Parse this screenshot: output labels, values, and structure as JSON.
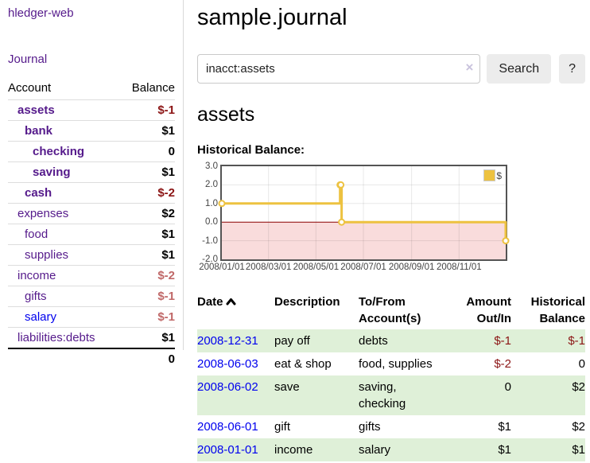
{
  "brand": "hledger-web",
  "nav": {
    "journal": "Journal"
  },
  "sidebar": {
    "header": {
      "account": "Account",
      "balance": "Balance"
    },
    "accounts": [
      {
        "name": "assets",
        "balance": "$-1"
      },
      {
        "name": "bank",
        "balance": "$1"
      },
      {
        "name": "checking",
        "balance": "0"
      },
      {
        "name": "saving",
        "balance": "$1"
      },
      {
        "name": "cash",
        "balance": "$-2"
      },
      {
        "name": "expenses",
        "balance": "$2"
      },
      {
        "name": "food",
        "balance": "$1"
      },
      {
        "name": "supplies",
        "balance": "$1"
      },
      {
        "name": "income",
        "balance": "$-2"
      },
      {
        "name": "gifts",
        "balance": "$-1"
      },
      {
        "name": "salary",
        "balance": "$-1"
      },
      {
        "name": "liabilities:debts",
        "balance": "$1"
      }
    ],
    "total": "0"
  },
  "header": {
    "title": "sample.journal"
  },
  "search": {
    "value": "inacct:assets",
    "clear": "×",
    "button": "Search",
    "help": "?"
  },
  "account_page": {
    "heading": "assets",
    "chart_label": "Historical Balance:"
  },
  "chart_data": {
    "type": "line",
    "step": true,
    "title": "Historical Balance",
    "series": [
      {
        "name": "$",
        "color": "#edc240",
        "points": [
          {
            "date": "2008-01-01",
            "value": 1
          },
          {
            "date": "2008-06-01",
            "value": 2
          },
          {
            "date": "2008-06-02",
            "value": 2
          },
          {
            "date": "2008-06-03",
            "value": 0
          },
          {
            "date": "2008-12-31",
            "value": -1
          }
        ]
      }
    ],
    "x_ticks": [
      {
        "label": "2008/01/01",
        "date": "2008-01-01"
      },
      {
        "label": "2008/03/01",
        "date": "2008-03-01"
      },
      {
        "label": "2008/05/01",
        "date": "2008-05-01"
      },
      {
        "label": "2008/07/01",
        "date": "2008-07-01"
      },
      {
        "label": "2008/09/01",
        "date": "2008-09-01"
      },
      {
        "label": "2008/11/01",
        "date": "2008-11-01"
      }
    ],
    "y_ticks": [
      3.0,
      2.0,
      1.0,
      0.0,
      -1.0,
      -2.0
    ],
    "ylim": [
      -2,
      3
    ],
    "xlim": [
      "2008-01-01",
      "2008-12-31"
    ],
    "grid": true,
    "negative_fill": "#f9dcdc",
    "zero_line_color": "#8b0000",
    "legend": {
      "label": "$",
      "position": "top-right"
    }
  },
  "transactions": {
    "headers": {
      "date": "Date",
      "description": "Description",
      "tofrom1": "To/From",
      "tofrom2": "Account(s)",
      "amount1": "Amount",
      "amount2": "Out/In",
      "hist1": "Historical",
      "hist2": "Balance"
    },
    "rows": [
      {
        "date": "2008-12-31",
        "description": "pay off",
        "accounts": "debts",
        "amount": "$-1",
        "balance": "$-1"
      },
      {
        "date": "2008-06-03",
        "description": "eat & shop",
        "accounts": "food, supplies",
        "amount": "$-2",
        "balance": "0"
      },
      {
        "date": "2008-06-02",
        "description": "save",
        "accounts": "saving, checking",
        "amount": "0",
        "balance": "$2"
      },
      {
        "date": "2008-06-01",
        "description": "gift",
        "accounts": "gifts",
        "amount": "$1",
        "balance": "$2"
      },
      {
        "date": "2008-01-01",
        "description": "income",
        "accounts": "salary",
        "amount": "$1",
        "balance": "$1"
      }
    ]
  },
  "colors": {
    "link_purple": "#551a8b",
    "link_blue": "#0000ee",
    "negative_dark": "#8b1414",
    "negative_light": "#c06868",
    "row_green": "#dff0d8",
    "chart_line": "#edc240"
  }
}
